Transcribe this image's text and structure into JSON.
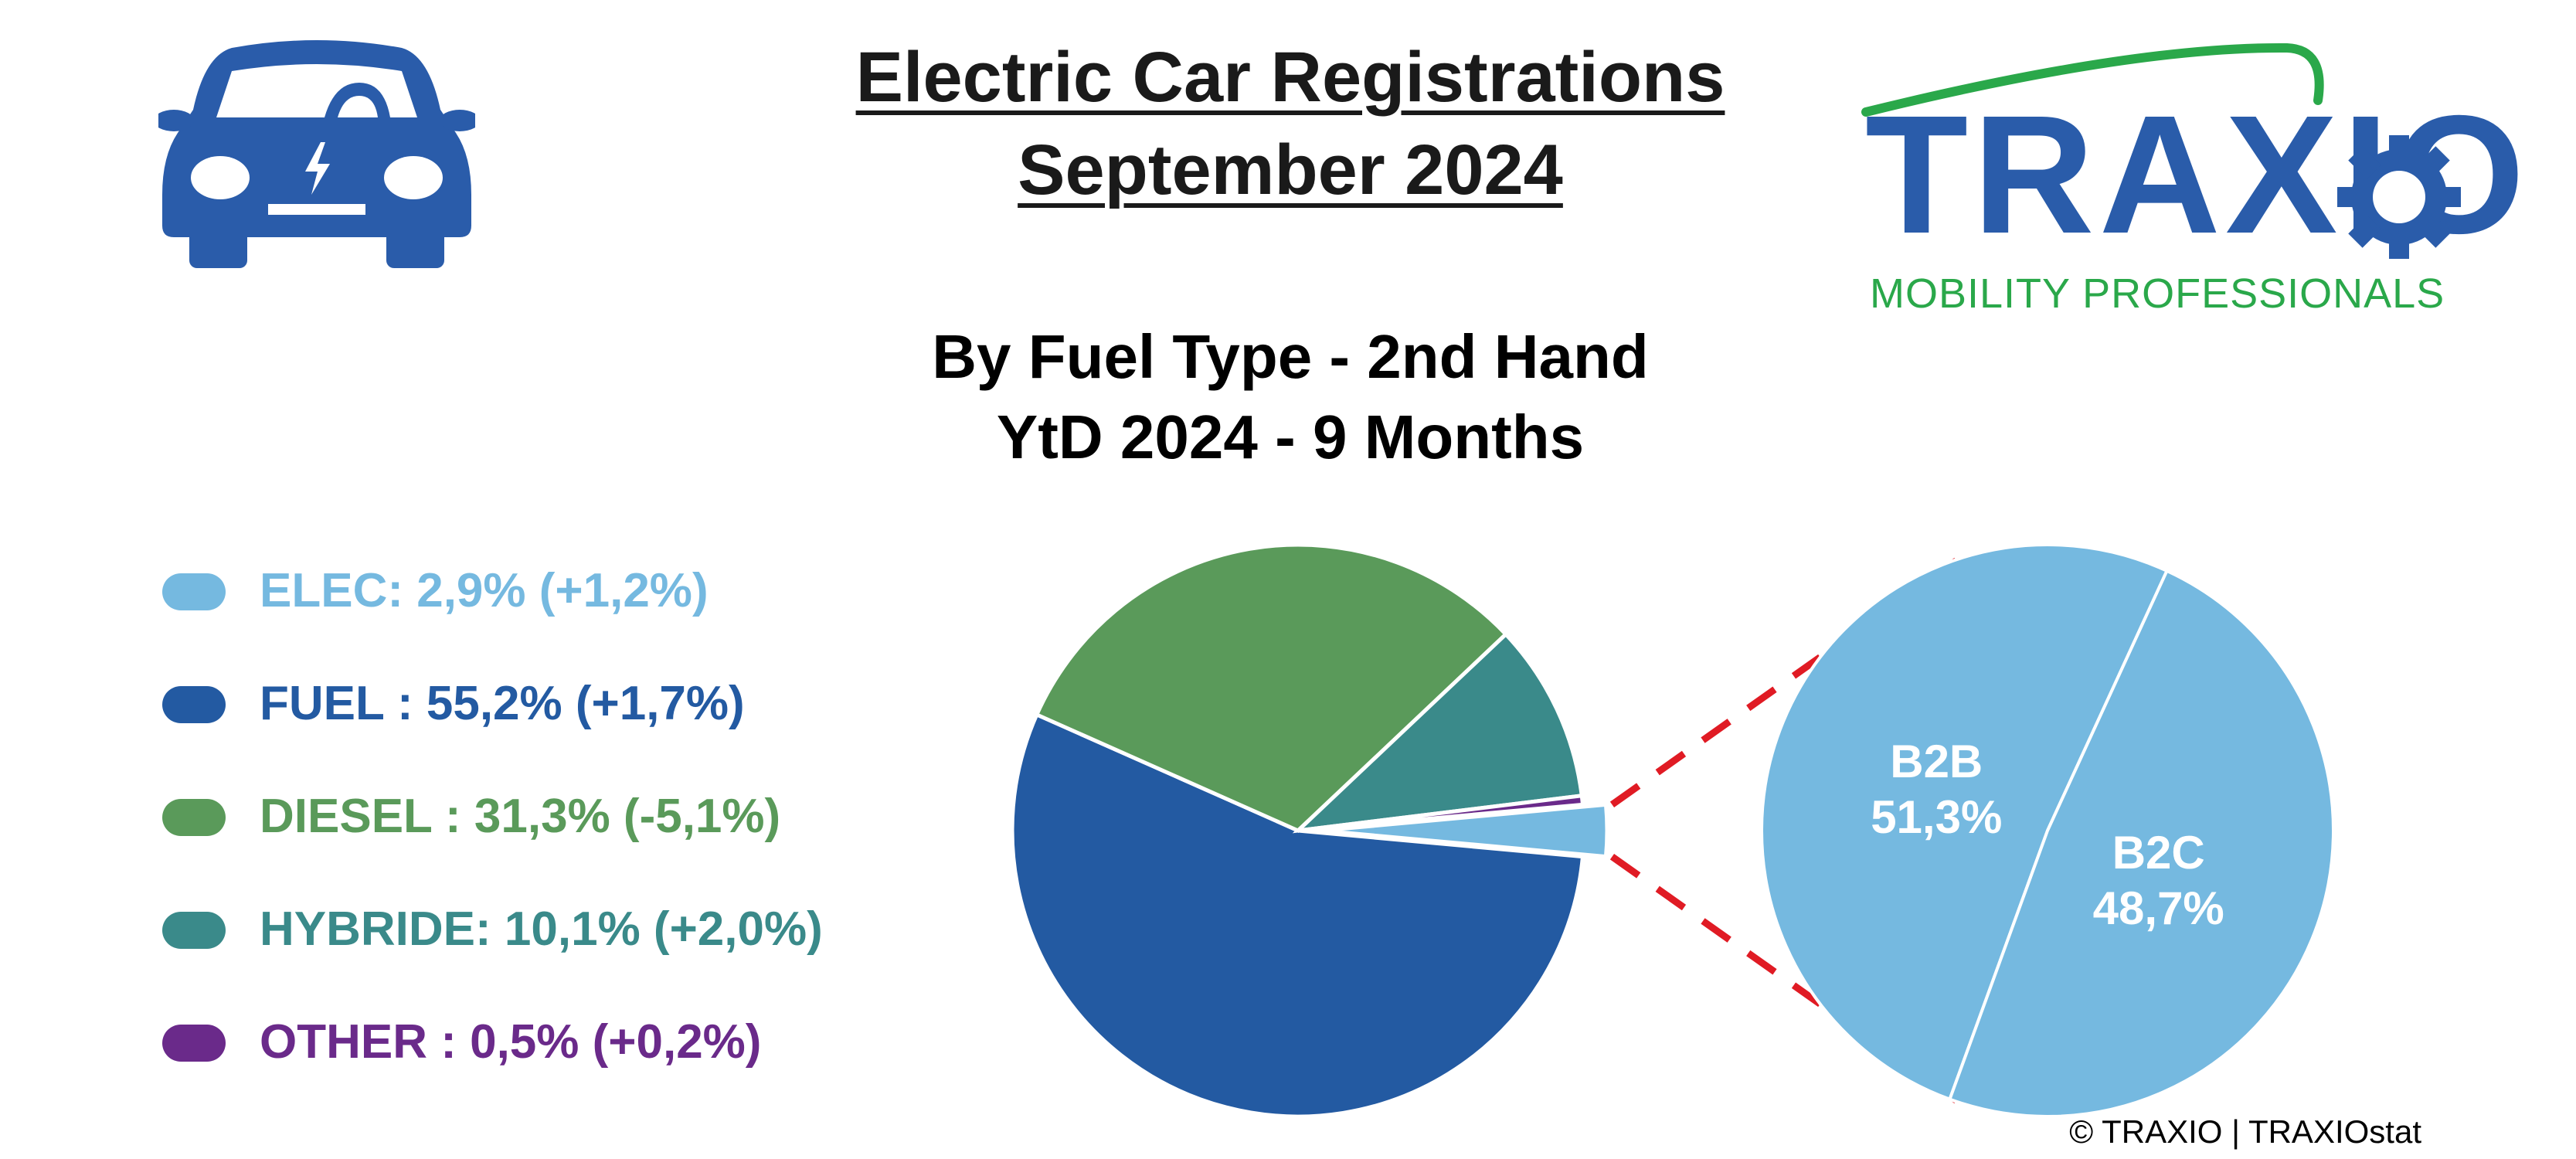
{
  "header": {
    "title_line1": "Electric Car Registrations",
    "title_line2": "September 2024",
    "subtitle_line1": "By Fuel Type - 2nd Hand",
    "subtitle_line2": "YtD 2024 - 9 Months"
  },
  "logo": {
    "car_icon": "electric-car-icon",
    "brand": "TRAXIO",
    "tagline": "MOBILITY PROFESSIONALS",
    "brand_color": "#2a5caa",
    "tagline_color": "#2aa84a"
  },
  "legend": [
    {
      "label": "ELEC: 2,9% (+1,2%)",
      "color": "#75b9e0"
    },
    {
      "label": "FUEL : 55,2% (+1,7%)",
      "color": "#235aa2"
    },
    {
      "label": "DIESEL : 31,3% (-5,1%)",
      "color": "#5a9a5a"
    },
    {
      "label": "HYBRIDE: 10,1% (+2,0%)",
      "color": "#3a8a8a"
    },
    {
      "label": "OTHER : 0,5% (+0,2%)",
      "color": "#6a2a8a"
    }
  ],
  "chart_data": [
    {
      "type": "pie",
      "categories": [
        "ELEC",
        "FUEL",
        "DIESEL",
        "HYBRIDE",
        "OTHER"
      ],
      "values": [
        2.9,
        55.2,
        31.3,
        10.1,
        0.5
      ],
      "changes": [
        "+1,2%",
        "+1,7%",
        "-5,1%",
        "+2,0%",
        "+0,2%"
      ],
      "colors": [
        "#75b9e0",
        "#235aa2",
        "#5a9a5a",
        "#3a8a8a",
        "#6a2a8a"
      ],
      "exploded": "ELEC"
    },
    {
      "type": "pie",
      "categories": [
        "B2B",
        "B2C"
      ],
      "values": [
        51.3,
        48.7
      ],
      "labels": [
        "51,3%",
        "48,7%"
      ],
      "colors": [
        "#75b9e0",
        "#75b9e0"
      ],
      "detail_of": "ELEC",
      "connector_color": "#e01b24"
    }
  ],
  "footer": {
    "copyright": "© TRAXIO | TRAXIOstat"
  }
}
